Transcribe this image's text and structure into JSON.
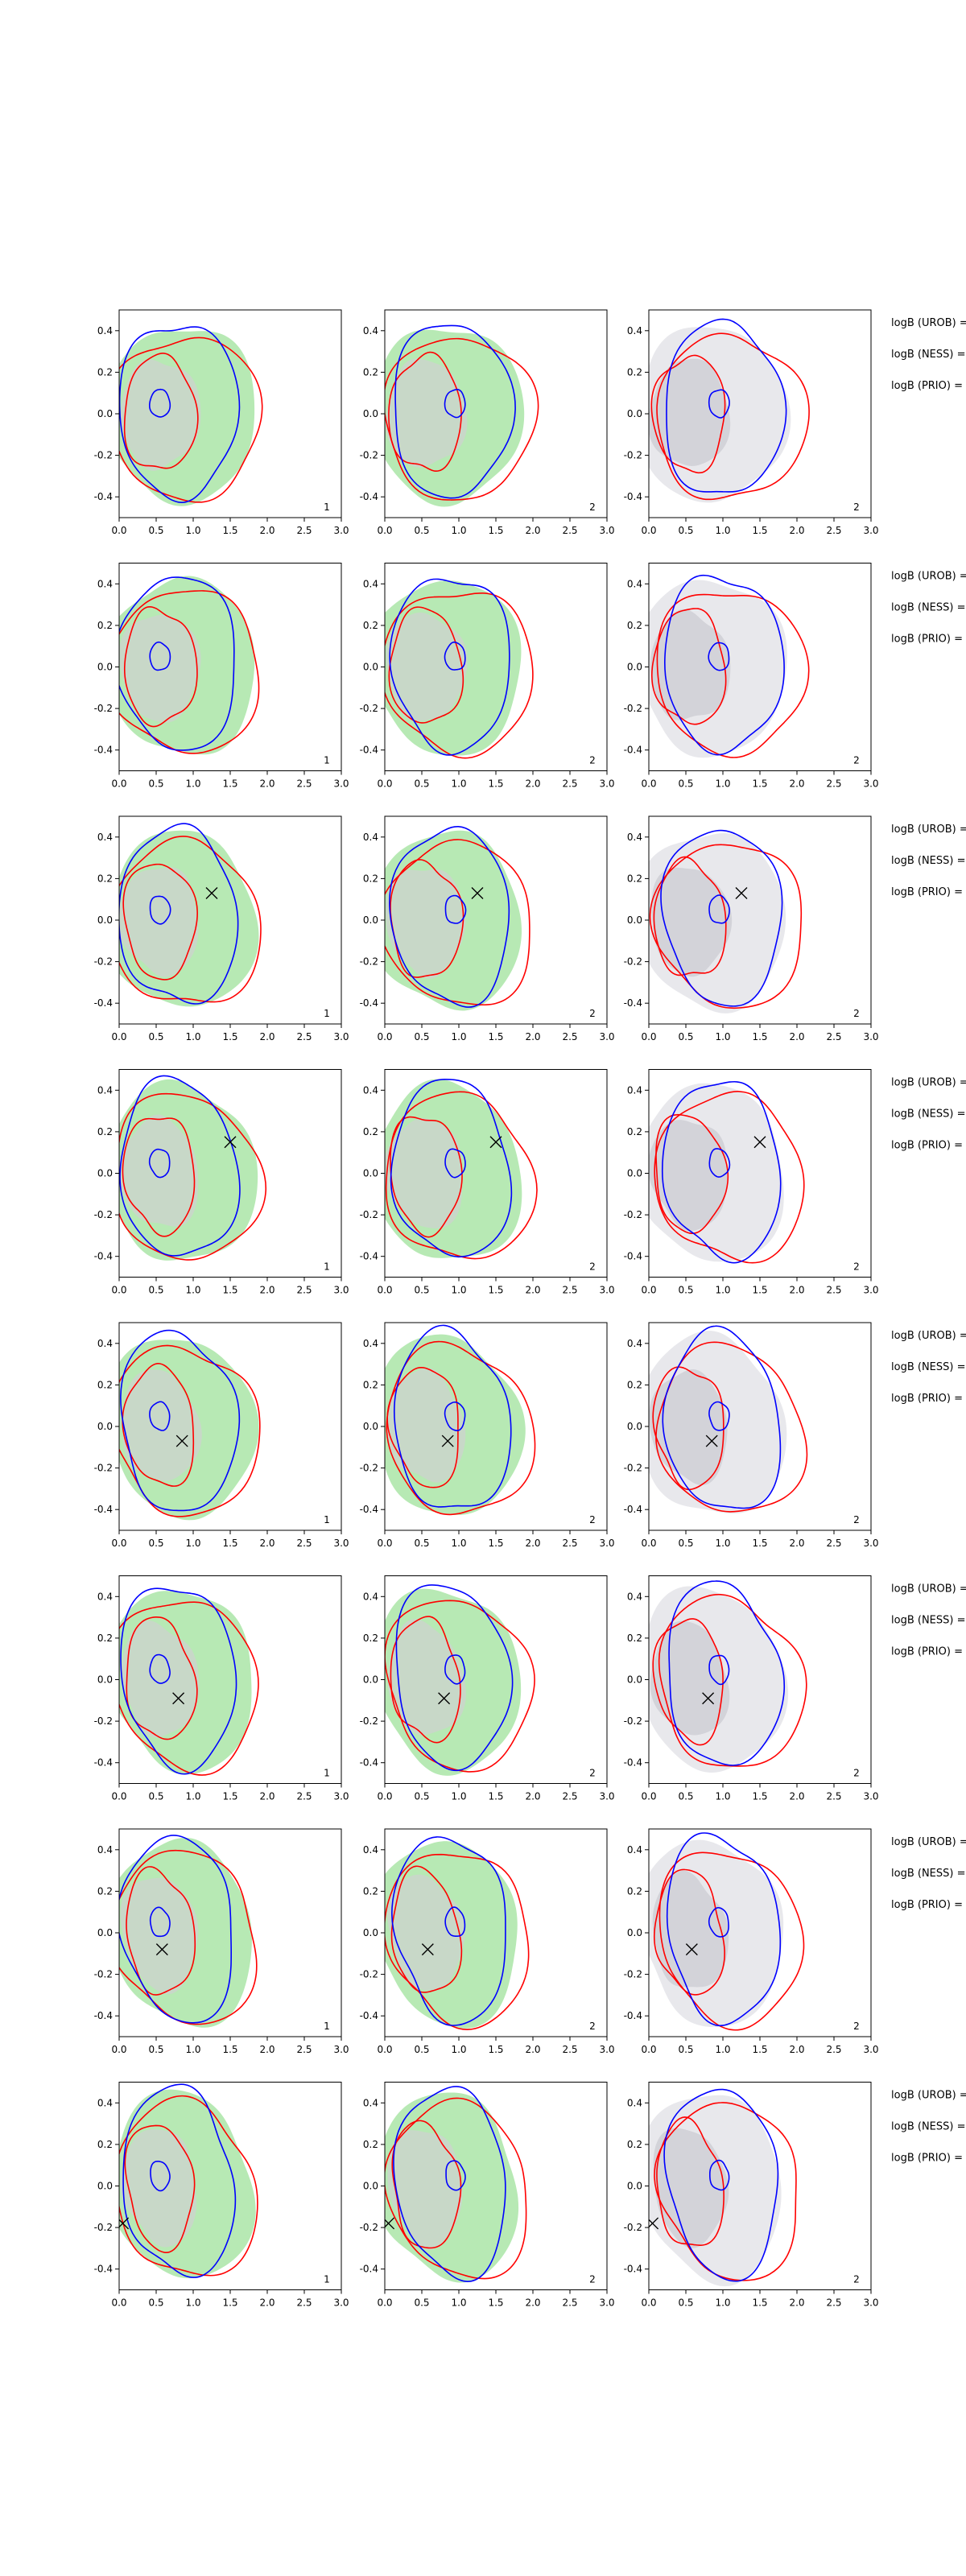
{
  "chart_data": {
    "type": "contour",
    "xlim": [
      0.0,
      3.0
    ],
    "ylim": [
      -0.5,
      0.5
    ],
    "x_ticks": [
      "0.0",
      "0.5",
      "1.0",
      "1.5",
      "2.0",
      "2.5",
      "3.0"
    ],
    "y_ticks": [
      "-0.4",
      "-0.2",
      "0.0",
      "0.2",
      "0.4"
    ],
    "grid": false,
    "colors": {
      "filled_density": "#b7e9b4",
      "filled_density_core": "#c8d8c8",
      "grey_density": "#e8e8ec",
      "grey_density_core": "#d3d3d9",
      "contour_a": "#ff0000",
      "contour_b": "#0000ff",
      "marker": "#000000"
    },
    "row_labels": [
      "logB (UROB) =",
      "logB (NESS) =",
      "logB (PRIO) ="
    ],
    "panel_tags": [
      "1",
      "2",
      "2"
    ],
    "rows": [
      {
        "marker": null
      },
      {
        "marker": null
      },
      {
        "marker": [
          1.25,
          0.13
        ]
      },
      {
        "marker": [
          1.5,
          0.15
        ]
      },
      {
        "marker": [
          0.85,
          -0.07
        ]
      },
      {
        "marker": [
          0.8,
          -0.09
        ]
      },
      {
        "marker": [
          0.58,
          -0.08
        ]
      },
      {
        "marker": [
          0.05,
          -0.18
        ]
      }
    ]
  }
}
